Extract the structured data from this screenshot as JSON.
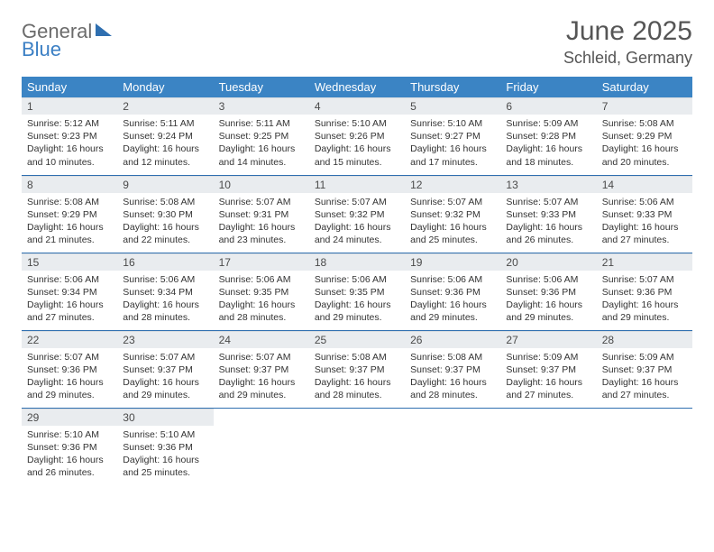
{
  "brand": {
    "word1": "General",
    "word2": "Blue"
  },
  "title": "June 2025",
  "location": "Schleid, Germany",
  "colors": {
    "header_bg": "#3b84c4",
    "header_text": "#ffffff",
    "daynum_bg": "#e9ecef",
    "row_border": "#2f6fb0",
    "body_text": "#333333",
    "title_text": "#555555",
    "logo_gray": "#6b6b6b",
    "logo_blue": "#3b7fc4"
  },
  "weekdays": [
    "Sunday",
    "Monday",
    "Tuesday",
    "Wednesday",
    "Thursday",
    "Friday",
    "Saturday"
  ],
  "weeks": [
    [
      {
        "n": "1",
        "sr": "5:12 AM",
        "ss": "9:23 PM",
        "dl": "16 hours and 10 minutes."
      },
      {
        "n": "2",
        "sr": "5:11 AM",
        "ss": "9:24 PM",
        "dl": "16 hours and 12 minutes."
      },
      {
        "n": "3",
        "sr": "5:11 AM",
        "ss": "9:25 PM",
        "dl": "16 hours and 14 minutes."
      },
      {
        "n": "4",
        "sr": "5:10 AM",
        "ss": "9:26 PM",
        "dl": "16 hours and 15 minutes."
      },
      {
        "n": "5",
        "sr": "5:10 AM",
        "ss": "9:27 PM",
        "dl": "16 hours and 17 minutes."
      },
      {
        "n": "6",
        "sr": "5:09 AM",
        "ss": "9:28 PM",
        "dl": "16 hours and 18 minutes."
      },
      {
        "n": "7",
        "sr": "5:08 AM",
        "ss": "9:29 PM",
        "dl": "16 hours and 20 minutes."
      }
    ],
    [
      {
        "n": "8",
        "sr": "5:08 AM",
        "ss": "9:29 PM",
        "dl": "16 hours and 21 minutes."
      },
      {
        "n": "9",
        "sr": "5:08 AM",
        "ss": "9:30 PM",
        "dl": "16 hours and 22 minutes."
      },
      {
        "n": "10",
        "sr": "5:07 AM",
        "ss": "9:31 PM",
        "dl": "16 hours and 23 minutes."
      },
      {
        "n": "11",
        "sr": "5:07 AM",
        "ss": "9:32 PM",
        "dl": "16 hours and 24 minutes."
      },
      {
        "n": "12",
        "sr": "5:07 AM",
        "ss": "9:32 PM",
        "dl": "16 hours and 25 minutes."
      },
      {
        "n": "13",
        "sr": "5:07 AM",
        "ss": "9:33 PM",
        "dl": "16 hours and 26 minutes."
      },
      {
        "n": "14",
        "sr": "5:06 AM",
        "ss": "9:33 PM",
        "dl": "16 hours and 27 minutes."
      }
    ],
    [
      {
        "n": "15",
        "sr": "5:06 AM",
        "ss": "9:34 PM",
        "dl": "16 hours and 27 minutes."
      },
      {
        "n": "16",
        "sr": "5:06 AM",
        "ss": "9:34 PM",
        "dl": "16 hours and 28 minutes."
      },
      {
        "n": "17",
        "sr": "5:06 AM",
        "ss": "9:35 PM",
        "dl": "16 hours and 28 minutes."
      },
      {
        "n": "18",
        "sr": "5:06 AM",
        "ss": "9:35 PM",
        "dl": "16 hours and 29 minutes."
      },
      {
        "n": "19",
        "sr": "5:06 AM",
        "ss": "9:36 PM",
        "dl": "16 hours and 29 minutes."
      },
      {
        "n": "20",
        "sr": "5:06 AM",
        "ss": "9:36 PM",
        "dl": "16 hours and 29 minutes."
      },
      {
        "n": "21",
        "sr": "5:07 AM",
        "ss": "9:36 PM",
        "dl": "16 hours and 29 minutes."
      }
    ],
    [
      {
        "n": "22",
        "sr": "5:07 AM",
        "ss": "9:36 PM",
        "dl": "16 hours and 29 minutes."
      },
      {
        "n": "23",
        "sr": "5:07 AM",
        "ss": "9:37 PM",
        "dl": "16 hours and 29 minutes."
      },
      {
        "n": "24",
        "sr": "5:07 AM",
        "ss": "9:37 PM",
        "dl": "16 hours and 29 minutes."
      },
      {
        "n": "25",
        "sr": "5:08 AM",
        "ss": "9:37 PM",
        "dl": "16 hours and 28 minutes."
      },
      {
        "n": "26",
        "sr": "5:08 AM",
        "ss": "9:37 PM",
        "dl": "16 hours and 28 minutes."
      },
      {
        "n": "27",
        "sr": "5:09 AM",
        "ss": "9:37 PM",
        "dl": "16 hours and 27 minutes."
      },
      {
        "n": "28",
        "sr": "5:09 AM",
        "ss": "9:37 PM",
        "dl": "16 hours and 27 minutes."
      }
    ],
    [
      {
        "n": "29",
        "sr": "5:10 AM",
        "ss": "9:36 PM",
        "dl": "16 hours and 26 minutes."
      },
      {
        "n": "30",
        "sr": "5:10 AM",
        "ss": "9:36 PM",
        "dl": "16 hours and 25 minutes."
      },
      null,
      null,
      null,
      null,
      null
    ]
  ],
  "labels": {
    "sunrise": "Sunrise:",
    "sunset": "Sunset:",
    "daylight": "Daylight:"
  }
}
